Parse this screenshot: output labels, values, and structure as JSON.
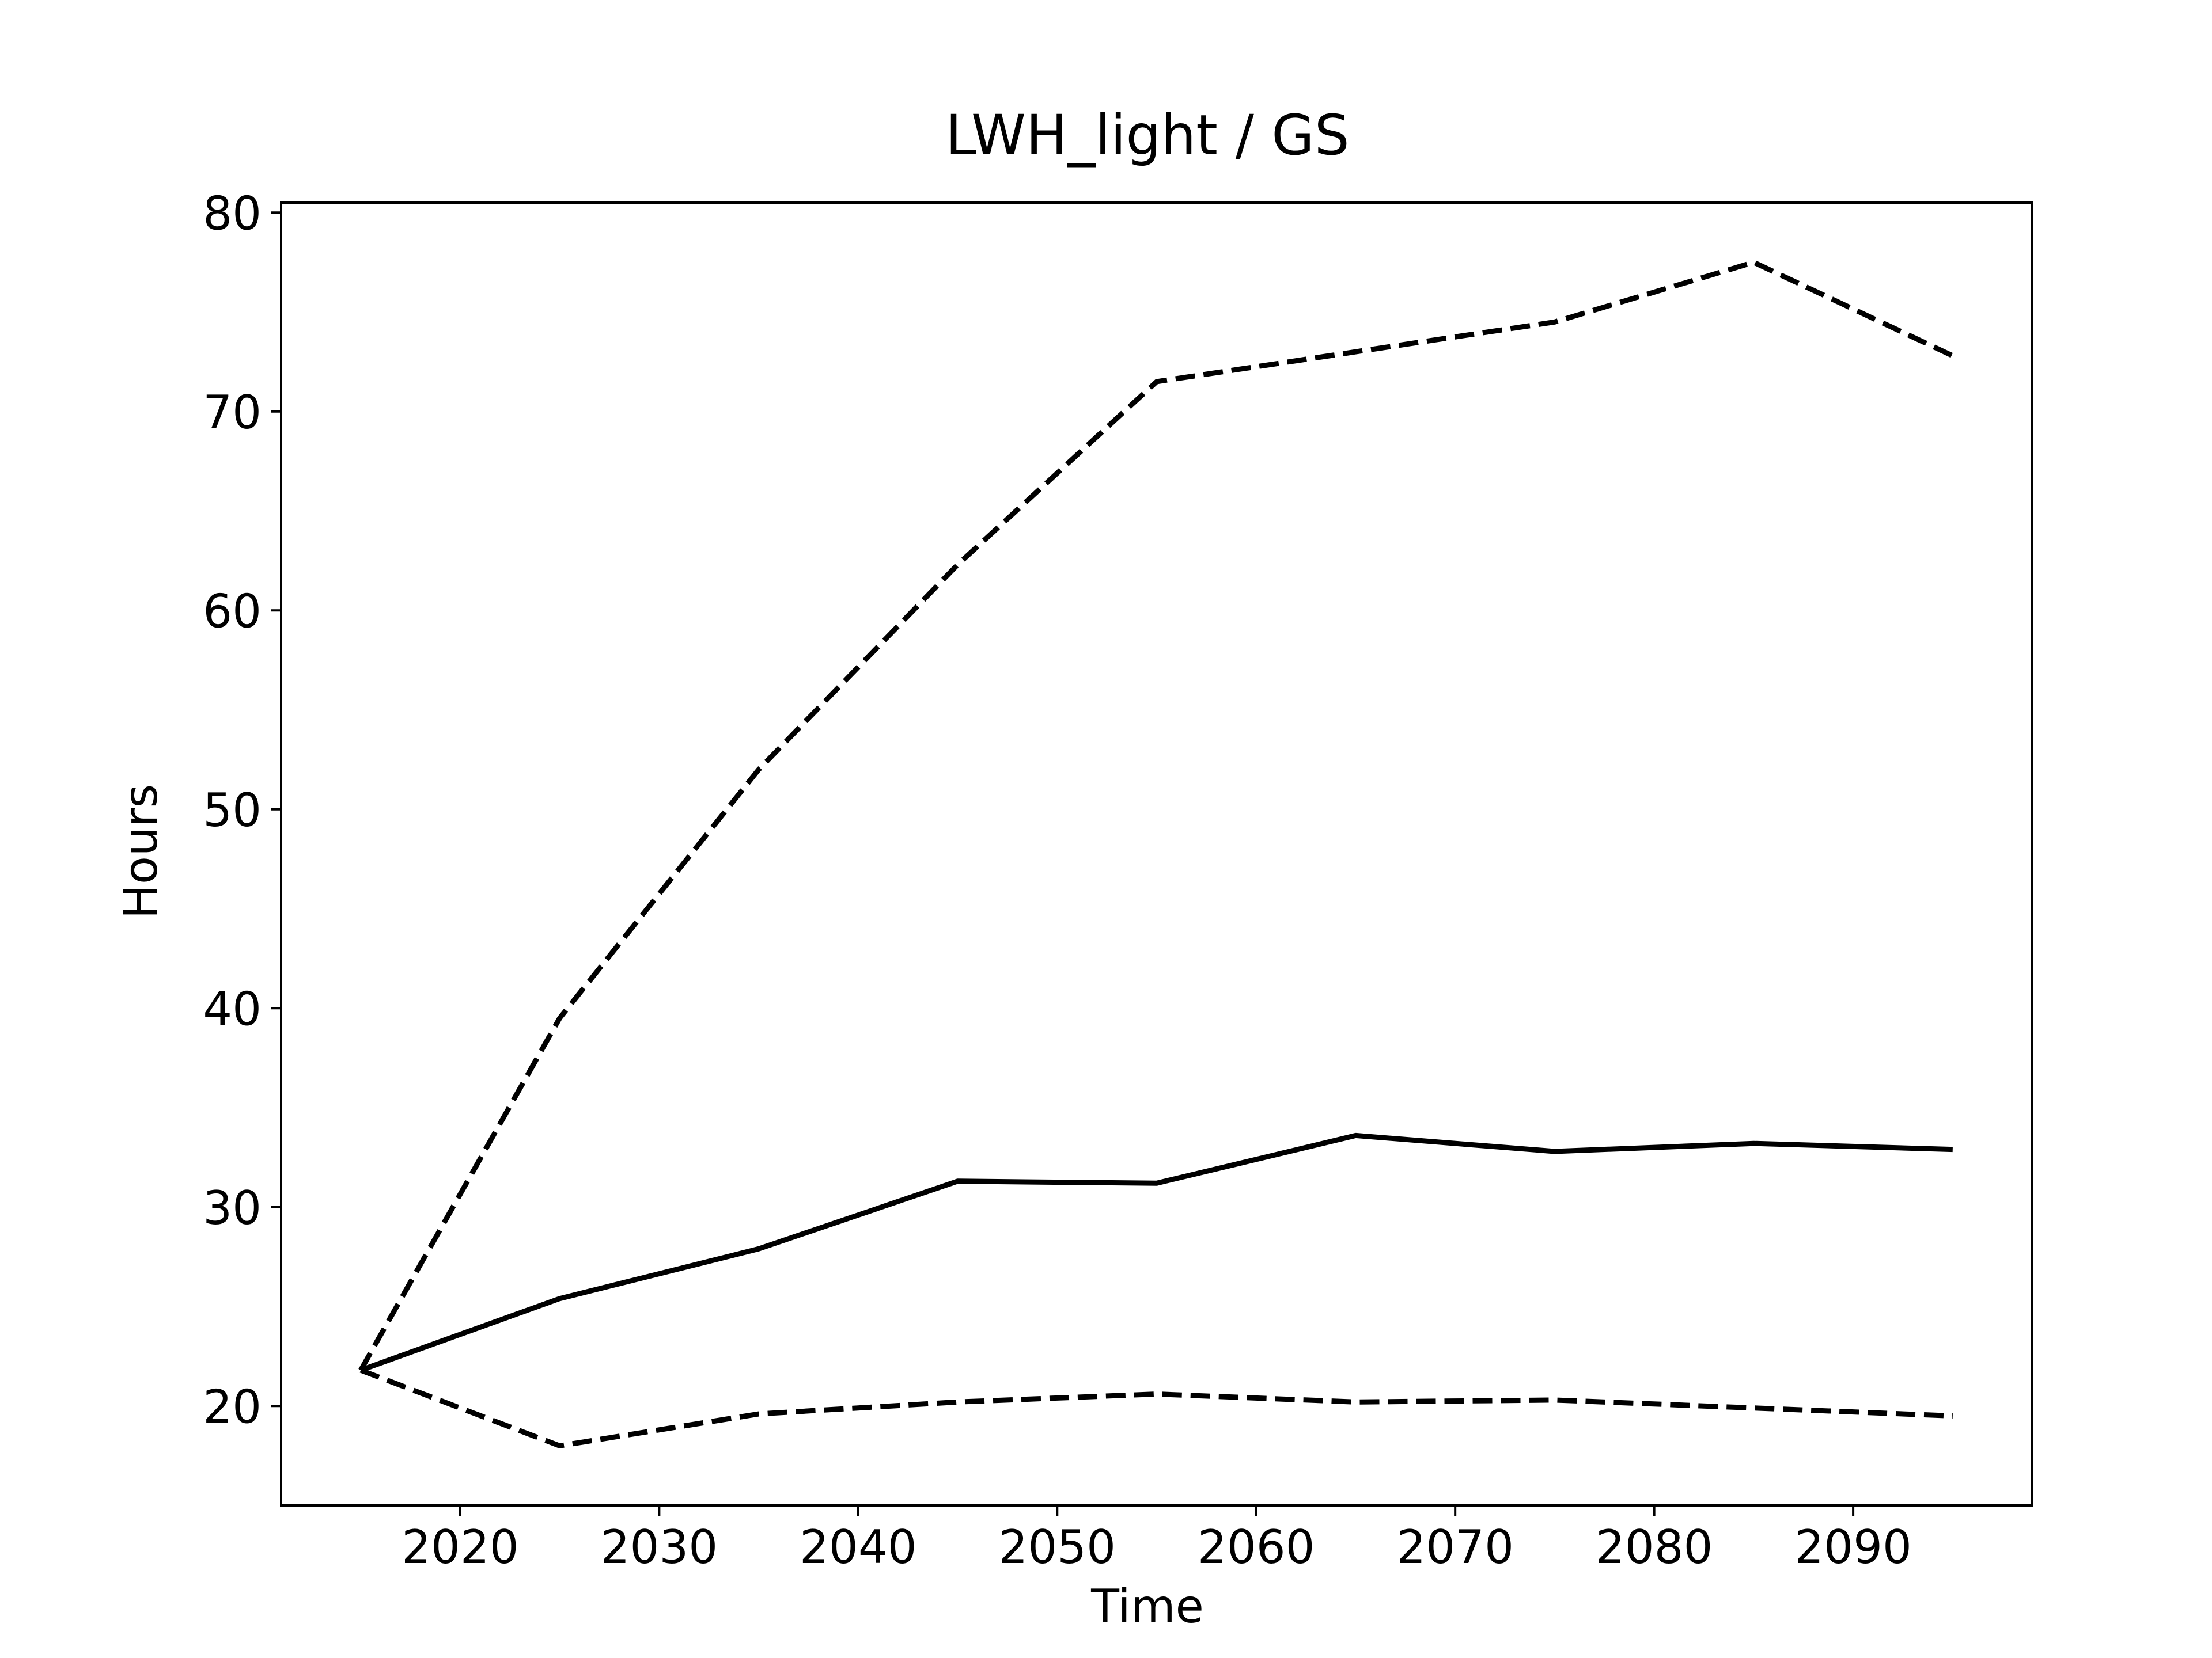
{
  "chart_data": {
    "type": "line",
    "title": "LWH_light / GS",
    "xlabel": "Time",
    "ylabel": "Hours",
    "xlim": [
      2011,
      2099
    ],
    "ylim": [
      15,
      80.5
    ],
    "xticks": [
      2020,
      2030,
      2040,
      2050,
      2060,
      2070,
      2080,
      2090
    ],
    "yticks": [
      20,
      30,
      40,
      50,
      60,
      70,
      80
    ],
    "grid": false,
    "legend": null,
    "x": [
      2015,
      2025,
      2035,
      2045,
      2055,
      2065,
      2075,
      2085,
      2095
    ],
    "series": [
      {
        "style": "solid",
        "color": "#000000",
        "values": [
          21.8,
          25.4,
          27.9,
          31.3,
          31.2,
          33.6,
          32.8,
          33.2,
          32.9
        ]
      },
      {
        "style": "dashed",
        "color": "#000000",
        "values": [
          21.8,
          39.5,
          52.0,
          62.3,
          71.5,
          73.0,
          74.5,
          77.5,
          72.8
        ]
      },
      {
        "style": "dashed",
        "color": "#000000",
        "values": [
          21.8,
          18.0,
          19.6,
          20.2,
          20.6,
          20.2,
          20.3,
          19.9,
          19.5
        ]
      }
    ]
  }
}
